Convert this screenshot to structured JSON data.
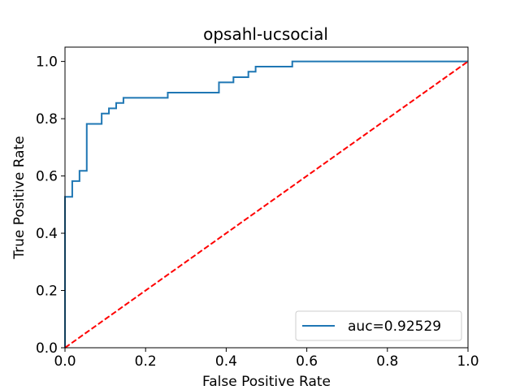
{
  "chart_data": {
    "type": "line",
    "title": "opsahl-ucsocial",
    "xlabel": "False Positive Rate",
    "ylabel": "True Positive Rate",
    "xlim": [
      0.0,
      1.0
    ],
    "ylim": [
      0.0,
      1.05
    ],
    "xticks": [
      "0.0",
      "0.2",
      "0.4",
      "0.6",
      "0.8",
      "1.0"
    ],
    "yticks": [
      "0.0",
      "0.2",
      "0.4",
      "0.6",
      "0.8",
      "1.0"
    ],
    "grid": false,
    "legend_position": "lower-right",
    "series": [
      {
        "name": "auc=0.92529",
        "color": "#1f77b4",
        "style": "solid",
        "x": [
          0.0,
          0.0,
          0.018,
          0.018,
          0.036,
          0.036,
          0.054,
          0.054,
          0.091,
          0.091,
          0.109,
          0.109,
          0.127,
          0.127,
          0.145,
          0.145,
          0.255,
          0.255,
          0.382,
          0.382,
          0.418,
          0.418,
          0.455,
          0.455,
          0.473,
          0.473,
          0.564,
          0.564,
          1.0
        ],
        "y": [
          0.0,
          0.527,
          0.527,
          0.582,
          0.582,
          0.618,
          0.618,
          0.782,
          0.782,
          0.818,
          0.818,
          0.836,
          0.836,
          0.855,
          0.855,
          0.873,
          0.873,
          0.891,
          0.891,
          0.927,
          0.927,
          0.945,
          0.945,
          0.964,
          0.964,
          0.982,
          0.982,
          1.0,
          1.0
        ]
      },
      {
        "name": "",
        "color": "#ff0000",
        "style": "dashed",
        "x": [
          0.0,
          1.0
        ],
        "y": [
          0.0,
          1.0
        ]
      }
    ]
  }
}
